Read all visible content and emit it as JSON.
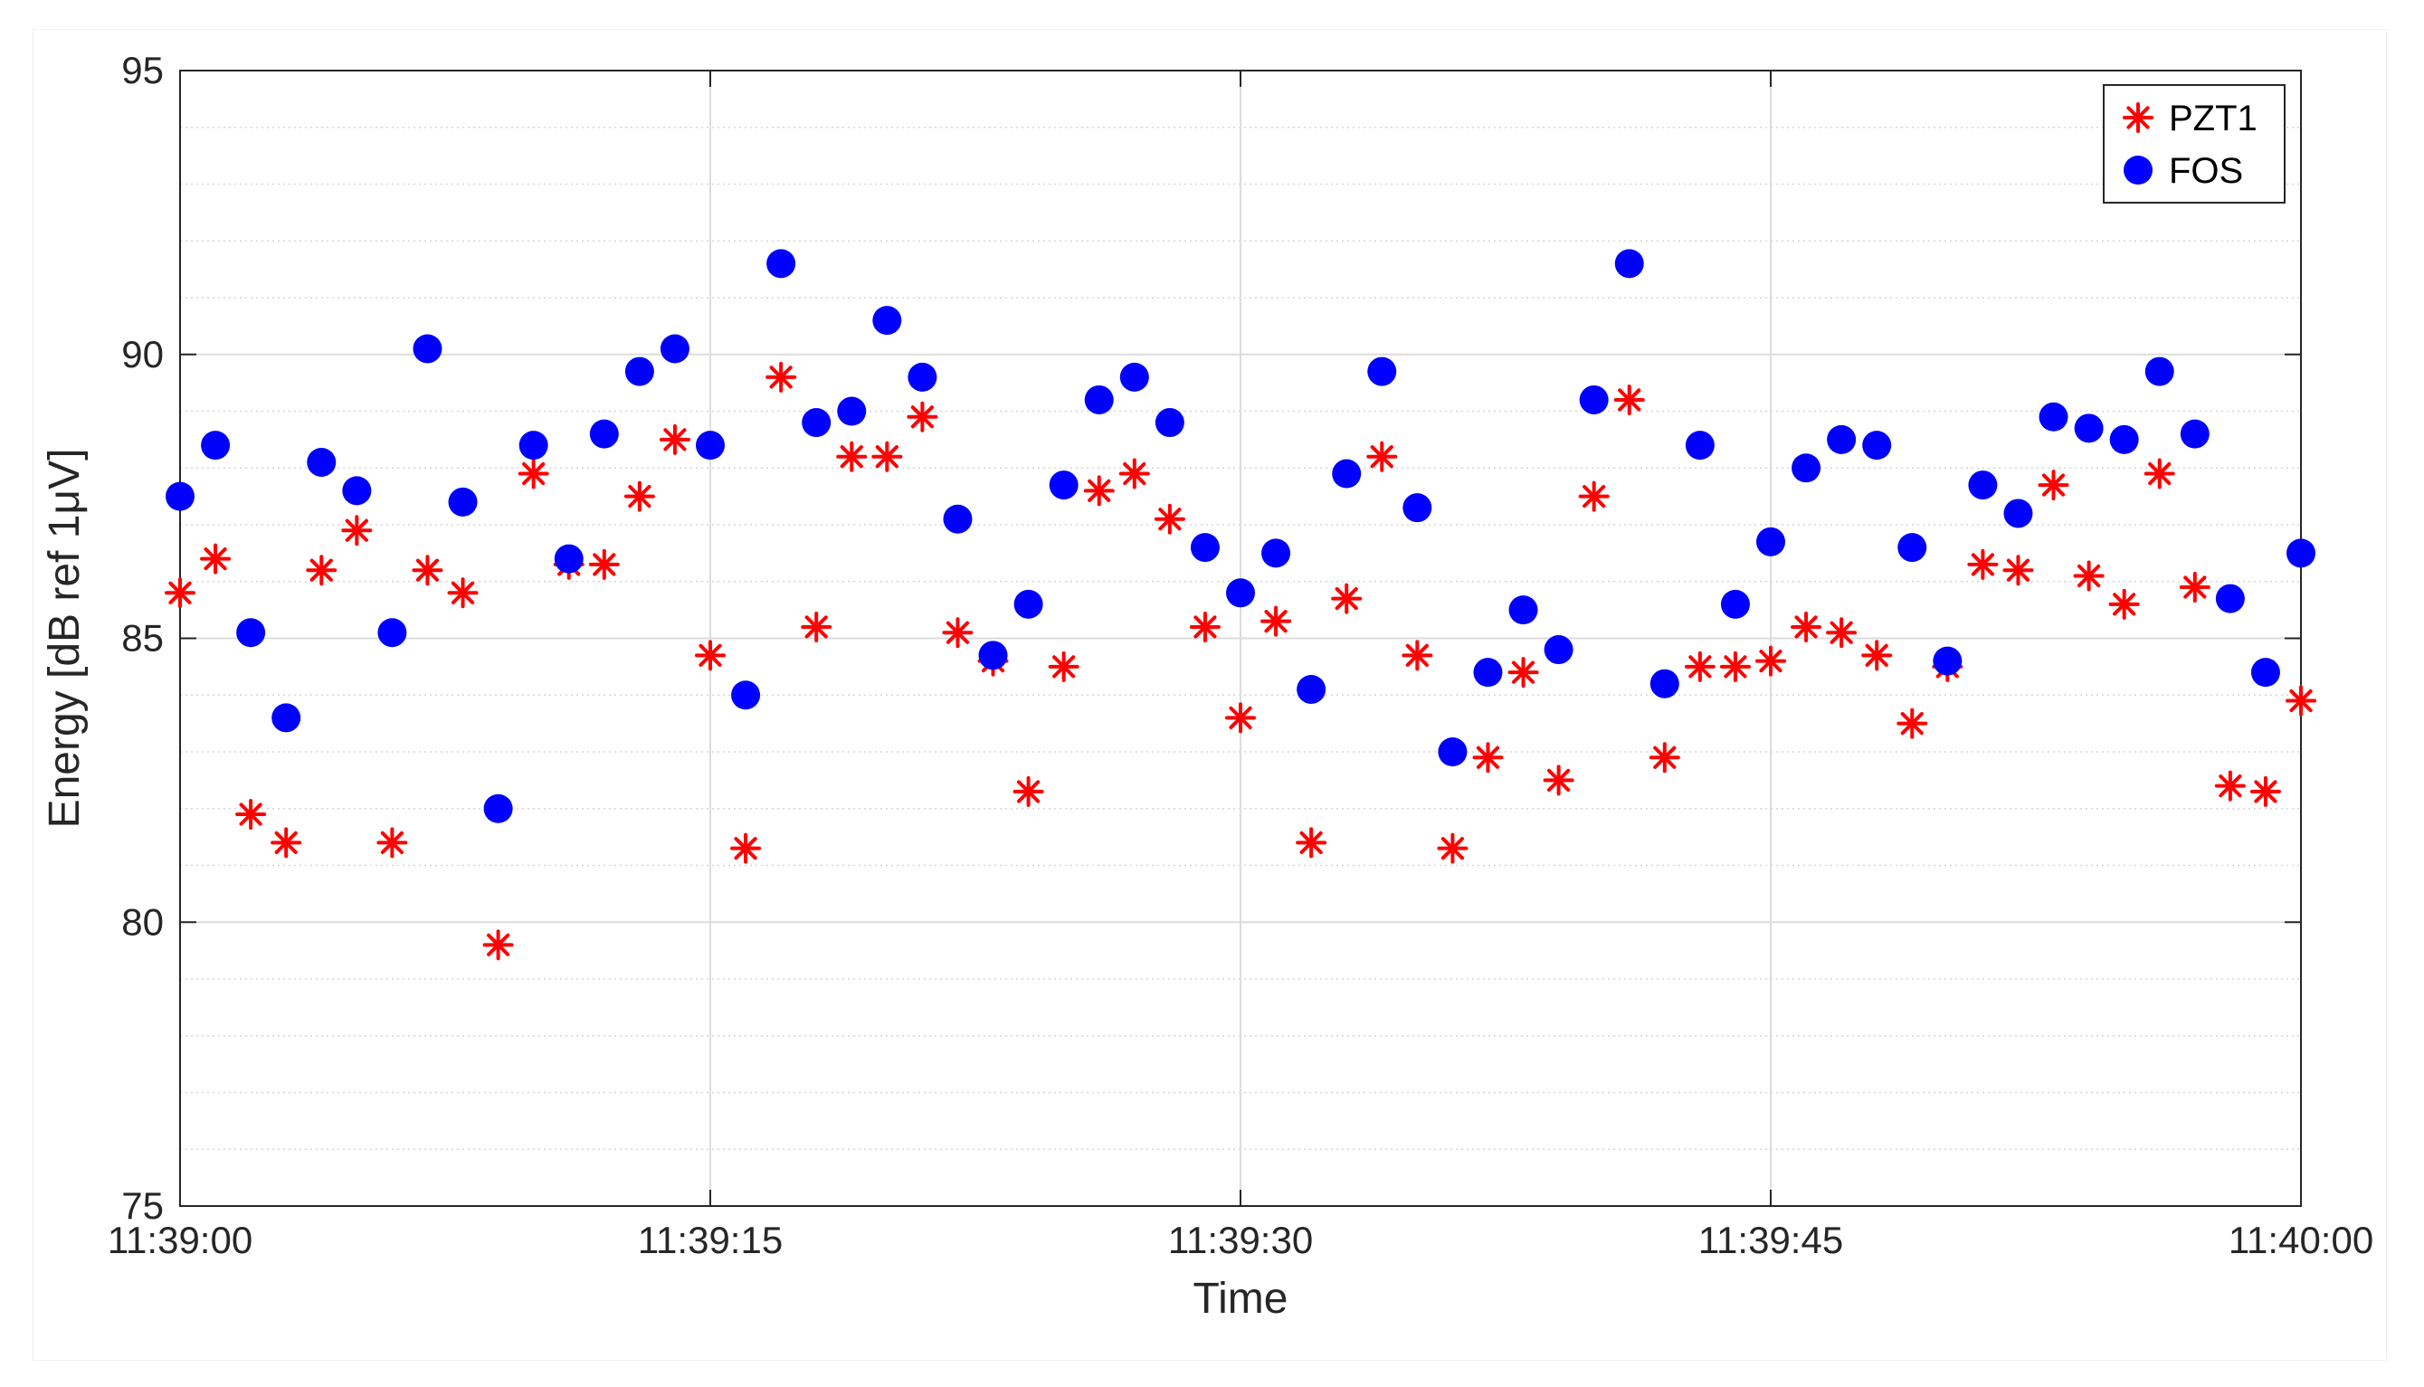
{
  "chart_data": {
    "type": "scatter",
    "xlabel": "Time",
    "ylabel": "Energy [dB ref 1μV]",
    "xlim": [
      "11:39:00",
      "11:40:00"
    ],
    "ylim": [
      75,
      95
    ],
    "x_ticks": [
      "11:39:00",
      "11:39:15",
      "11:39:30",
      "11:39:45",
      "11:40:00"
    ],
    "y_ticks": [
      75,
      80,
      85,
      90,
      95
    ],
    "grid": true,
    "legend_position": "top-right",
    "colors": {
      "PZT1": "#ff0000",
      "FOS": "#0000ff"
    },
    "series": [
      {
        "name": "PZT1",
        "marker": "asterisk",
        "x": [
          "11:39:00",
          "11:39:01",
          "11:39:02",
          "11:39:03",
          "11:39:04",
          "11:39:05",
          "11:39:06",
          "11:39:07",
          "11:39:08",
          "11:39:09",
          "11:39:10",
          "11:39:11",
          "11:39:12",
          "11:39:13",
          "11:39:14",
          "11:39:15",
          "11:39:16",
          "11:39:17",
          "11:39:18",
          "11:39:19",
          "11:39:20",
          "11:39:21",
          "11:39:22",
          "11:39:23",
          "11:39:24",
          "11:39:25",
          "11:39:26",
          "11:39:27",
          "11:39:28",
          "11:39:29",
          "11:39:30",
          "11:39:31",
          "11:39:32",
          "11:39:33",
          "11:39:34",
          "11:39:35",
          "11:39:36",
          "11:39:37",
          "11:39:38",
          "11:39:39",
          "11:39:40",
          "11:39:41",
          "11:39:42",
          "11:39:43",
          "11:39:44",
          "11:39:45",
          "11:39:46",
          "11:39:47",
          "11:39:48",
          "11:39:49",
          "11:39:50",
          "11:39:51",
          "11:39:52",
          "11:39:53",
          "11:39:54",
          "11:39:55",
          "11:39:56",
          "11:39:57",
          "11:39:58",
          "11:39:59",
          "11:40:00"
        ],
        "y": [
          85.8,
          86.4,
          81.9,
          81.4,
          86.2,
          86.9,
          81.4,
          86.2,
          85.8,
          79.6,
          87.9,
          86.3,
          86.3,
          87.5,
          88.5,
          84.7,
          81.3,
          89.6,
          85.2,
          88.2,
          88.2,
          88.9,
          85.1,
          84.6,
          82.3,
          84.5,
          87.6,
          87.9,
          87.1,
          85.2,
          83.6,
          85.3,
          81.4,
          85.7,
          88.2,
          84.7,
          81.3,
          82.9,
          84.4,
          82.5,
          87.5,
          89.2,
          82.9,
          84.5,
          84.5,
          84.6,
          85.2,
          85.1,
          84.7,
          83.5,
          84.5,
          86.3,
          86.2,
          87.7,
          86.1,
          85.6,
          87.9,
          85.9,
          82.4,
          82.3,
          83.9
        ]
      },
      {
        "name": "FOS",
        "marker": "circle",
        "x": [
          "11:39:00",
          "11:39:01",
          "11:39:02",
          "11:39:03",
          "11:39:04",
          "11:39:05",
          "11:39:06",
          "11:39:07",
          "11:39:08",
          "11:39:09",
          "11:39:10",
          "11:39:11",
          "11:39:12",
          "11:39:13",
          "11:39:14",
          "11:39:15",
          "11:39:16",
          "11:39:17",
          "11:39:18",
          "11:39:19",
          "11:39:20",
          "11:39:21",
          "11:39:22",
          "11:39:23",
          "11:39:24",
          "11:39:25",
          "11:39:26",
          "11:39:27",
          "11:39:28",
          "11:39:29",
          "11:39:30",
          "11:39:31",
          "11:39:32",
          "11:39:33",
          "11:39:34",
          "11:39:35",
          "11:39:36",
          "11:39:37",
          "11:39:38",
          "11:39:39",
          "11:39:40",
          "11:39:41",
          "11:39:42",
          "11:39:43",
          "11:39:44",
          "11:39:45",
          "11:39:46",
          "11:39:47",
          "11:39:48",
          "11:39:49",
          "11:39:50",
          "11:39:51",
          "11:39:52",
          "11:39:53",
          "11:39:54",
          "11:39:55",
          "11:39:56",
          "11:39:57",
          "11:39:58",
          "11:39:59",
          "11:40:00"
        ],
        "y": [
          87.5,
          88.4,
          85.1,
          83.6,
          88.1,
          87.6,
          85.1,
          90.1,
          87.4,
          82.0,
          88.4,
          86.4,
          88.6,
          89.7,
          90.1,
          88.4,
          84.0,
          91.6,
          88.8,
          89.0,
          90.6,
          89.6,
          87.1,
          84.7,
          85.6,
          87.7,
          89.2,
          89.6,
          88.8,
          86.6,
          85.8,
          86.5,
          84.1,
          87.9,
          89.7,
          87.3,
          83.0,
          84.4,
          85.5,
          84.8,
          89.2,
          91.6,
          84.2,
          88.4,
          85.6,
          86.7,
          88.0,
          88.5,
          88.4,
          86.6,
          84.6,
          87.7,
          87.2,
          88.9,
          88.7,
          88.5,
          89.7,
          88.6,
          85.7,
          84.4,
          86.5
        ]
      }
    ]
  }
}
